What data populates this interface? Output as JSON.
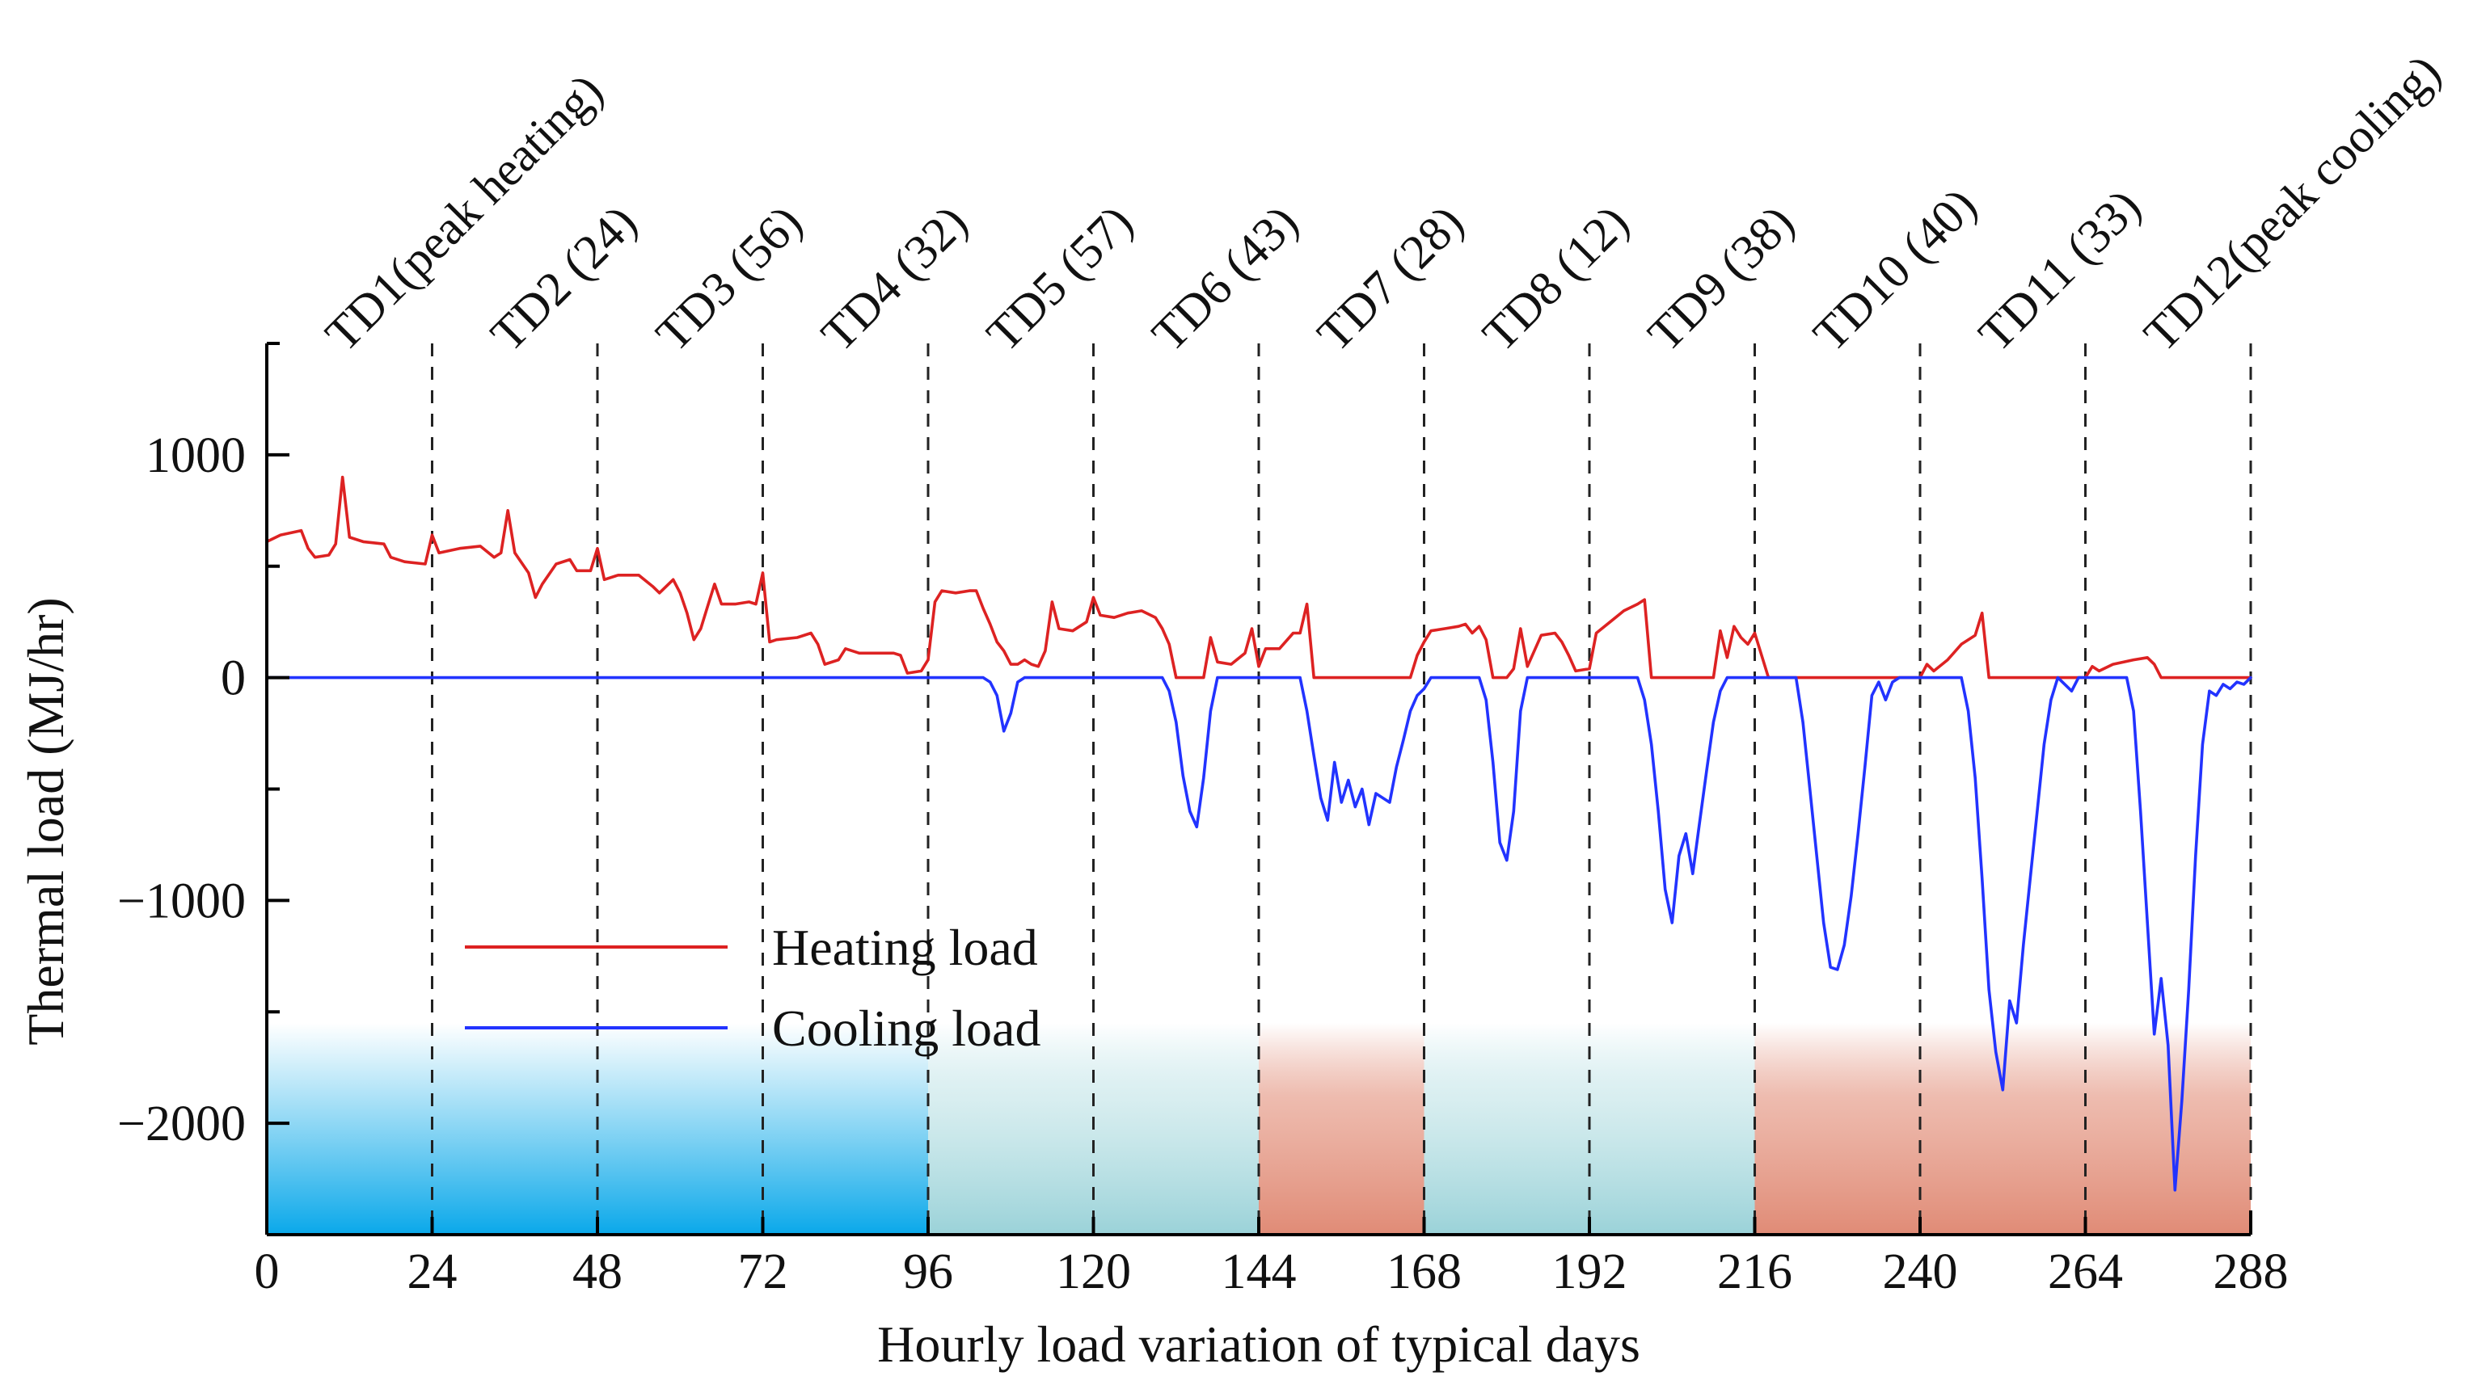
{
  "chart_data": {
    "type": "line",
    "title": "",
    "xlabel": "Hourly load variation of typical days",
    "ylabel": "Thermal load (MJ/hr)",
    "xlim": [
      0,
      288
    ],
    "ylim": [
      -2500,
      1500
    ],
    "xticks": [
      0,
      24,
      48,
      72,
      96,
      120,
      144,
      168,
      192,
      216,
      240,
      264,
      288
    ],
    "yticks": [
      1000,
      0,
      -1000,
      -2000
    ],
    "ytick_labels": [
      "1000",
      "0",
      "−1000",
      "−2000"
    ],
    "typical_day_labels": [
      "TD1(peak heating)",
      "TD2 (24)",
      "TD3 (56)",
      "TD4 (32)",
      "TD5 (57)",
      "TD6 (43)",
      "TD7 (28)",
      "TD8 (12)",
      "TD9 (38)",
      "TD10 (40)",
      "TD11 (33)",
      "TD12(peak cooling)"
    ],
    "day_boundaries": [
      24,
      48,
      72,
      96,
      120,
      144,
      168,
      192,
      216,
      240,
      264,
      288
    ],
    "season_bands": [
      {
        "season": "heating",
        "x_start": 0,
        "x_end": 96,
        "color": "#1aaee8"
      },
      {
        "season": "transition",
        "x_start": 96,
        "x_end": 144,
        "color": "#9fd6dc"
      },
      {
        "season": "cooling",
        "x_start": 144,
        "x_end": 168,
        "color": "#e08b76"
      },
      {
        "season": "transition",
        "x_start": 168,
        "x_end": 216,
        "color": "#9fd6dc"
      },
      {
        "season": "cooling",
        "x_start": 216,
        "x_end": 288,
        "color": "#e08b76"
      }
    ],
    "legend_position": "lower-left",
    "series": [
      {
        "name": "Heating load",
        "color": "#dd2222",
        "points": [
          [
            0,
            610
          ],
          [
            2,
            640
          ],
          [
            5,
            660
          ],
          [
            6,
            580
          ],
          [
            7,
            540
          ],
          [
            9,
            550
          ],
          [
            10,
            600
          ],
          [
            11,
            900
          ],
          [
            12,
            630
          ],
          [
            14,
            610
          ],
          [
            17,
            600
          ],
          [
            18,
            540
          ],
          [
            20,
            520
          ],
          [
            23,
            510
          ],
          [
            24,
            640
          ],
          [
            25,
            560
          ],
          [
            28,
            580
          ],
          [
            31,
            590
          ],
          [
            33,
            540
          ],
          [
            34,
            560
          ],
          [
            35,
            750
          ],
          [
            36,
            560
          ],
          [
            38,
            470
          ],
          [
            39,
            360
          ],
          [
            40,
            420
          ],
          [
            42,
            510
          ],
          [
            44,
            530
          ],
          [
            45,
            480
          ],
          [
            47,
            480
          ],
          [
            48,
            580
          ],
          [
            49,
            440
          ],
          [
            51,
            460
          ],
          [
            54,
            460
          ],
          [
            56,
            410
          ],
          [
            57,
            380
          ],
          [
            59,
            440
          ],
          [
            60,
            380
          ],
          [
            61,
            290
          ],
          [
            62,
            170
          ],
          [
            63,
            220
          ],
          [
            64,
            320
          ],
          [
            65,
            420
          ],
          [
            66,
            330
          ],
          [
            68,
            330
          ],
          [
            70,
            340
          ],
          [
            71,
            330
          ],
          [
            72,
            470
          ],
          [
            73,
            160
          ],
          [
            74,
            170
          ],
          [
            77,
            180
          ],
          [
            79,
            200
          ],
          [
            80,
            150
          ],
          [
            81,
            60
          ],
          [
            83,
            80
          ],
          [
            84,
            130
          ],
          [
            86,
            110
          ],
          [
            88,
            110
          ],
          [
            91,
            110
          ],
          [
            92,
            100
          ],
          [
            93,
            20
          ],
          [
            95,
            30
          ],
          [
            96,
            80
          ],
          [
            97,
            340
          ],
          [
            98,
            390
          ],
          [
            100,
            380
          ],
          [
            102,
            390
          ],
          [
            103,
            390
          ],
          [
            104,
            310
          ],
          [
            105,
            240
          ],
          [
            106,
            160
          ],
          [
            107,
            120
          ],
          [
            108,
            60
          ],
          [
            109,
            60
          ],
          [
            110,
            80
          ],
          [
            111,
            60
          ],
          [
            112,
            50
          ],
          [
            113,
            120
          ],
          [
            114,
            340
          ],
          [
            115,
            220
          ],
          [
            117,
            210
          ],
          [
            119,
            250
          ],
          [
            120,
            360
          ],
          [
            121,
            280
          ],
          [
            123,
            270
          ],
          [
            125,
            290
          ],
          [
            127,
            300
          ],
          [
            129,
            270
          ],
          [
            130,
            220
          ],
          [
            131,
            150
          ],
          [
            132,
            0
          ],
          [
            134,
            0
          ],
          [
            136,
            0
          ],
          [
            137,
            180
          ],
          [
            138,
            70
          ],
          [
            140,
            60
          ],
          [
            142,
            110
          ],
          [
            143,
            220
          ],
          [
            144,
            50
          ],
          [
            145,
            130
          ],
          [
            147,
            130
          ],
          [
            149,
            200
          ],
          [
            150,
            200
          ],
          [
            151,
            330
          ],
          [
            152,
            0
          ],
          [
            154,
            0
          ],
          [
            166,
            0
          ],
          [
            167,
            100
          ],
          [
            168,
            160
          ],
          [
            169,
            210
          ],
          [
            171,
            220
          ],
          [
            173,
            230
          ],
          [
            174,
            240
          ],
          [
            175,
            200
          ],
          [
            176,
            230
          ],
          [
            177,
            170
          ],
          [
            178,
            0
          ],
          [
            180,
            0
          ],
          [
            181,
            40
          ],
          [
            182,
            220
          ],
          [
            183,
            50
          ],
          [
            185,
            190
          ],
          [
            187,
            200
          ],
          [
            188,
            160
          ],
          [
            189,
            100
          ],
          [
            190,
            30
          ],
          [
            192,
            40
          ],
          [
            193,
            200
          ],
          [
            195,
            250
          ],
          [
            197,
            300
          ],
          [
            199,
            330
          ],
          [
            200,
            350
          ],
          [
            201,
            0
          ],
          [
            204,
            0
          ],
          [
            210,
            0
          ],
          [
            211,
            210
          ],
          [
            212,
            90
          ],
          [
            213,
            230
          ],
          [
            214,
            180
          ],
          [
            215,
            150
          ],
          [
            216,
            200
          ],
          [
            218,
            0
          ],
          [
            240,
            0
          ],
          [
            241,
            60
          ],
          [
            242,
            30
          ],
          [
            244,
            80
          ],
          [
            246,
            150
          ],
          [
            248,
            190
          ],
          [
            249,
            290
          ],
          [
            250,
            0
          ],
          [
            264,
            0
          ],
          [
            265,
            50
          ],
          [
            266,
            30
          ],
          [
            268,
            60
          ],
          [
            271,
            80
          ],
          [
            273,
            90
          ],
          [
            274,
            60
          ],
          [
            275,
            0
          ],
          [
            288,
            0
          ]
        ]
      },
      {
        "name": "Cooling load",
        "color": "#2233ff",
        "points": [
          [
            0,
            0
          ],
          [
            104,
            0
          ],
          [
            105,
            -20
          ],
          [
            106,
            -80
          ],
          [
            107,
            -240
          ],
          [
            108,
            -160
          ],
          [
            109,
            -20
          ],
          [
            110,
            0
          ],
          [
            130,
            0
          ],
          [
            131,
            -60
          ],
          [
            132,
            -200
          ],
          [
            133,
            -440
          ],
          [
            134,
            -600
          ],
          [
            135,
            -670
          ],
          [
            136,
            -450
          ],
          [
            137,
            -150
          ],
          [
            138,
            0
          ],
          [
            150,
            0
          ],
          [
            151,
            -150
          ],
          [
            152,
            -350
          ],
          [
            153,
            -540
          ],
          [
            154,
            -640
          ],
          [
            155,
            -380
          ],
          [
            156,
            -560
          ],
          [
            157,
            -460
          ],
          [
            158,
            -580
          ],
          [
            159,
            -500
          ],
          [
            160,
            -660
          ],
          [
            161,
            -520
          ],
          [
            163,
            -560
          ],
          [
            164,
            -400
          ],
          [
            165,
            -280
          ],
          [
            166,
            -150
          ],
          [
            167,
            -80
          ],
          [
            168,
            -50
          ],
          [
            169,
            0
          ],
          [
            176,
            0
          ],
          [
            177,
            -100
          ],
          [
            178,
            -380
          ],
          [
            179,
            -740
          ],
          [
            180,
            -820
          ],
          [
            181,
            -600
          ],
          [
            182,
            -150
          ],
          [
            183,
            0
          ],
          [
            199,
            0
          ],
          [
            200,
            -100
          ],
          [
            201,
            -300
          ],
          [
            202,
            -600
          ],
          [
            203,
            -950
          ],
          [
            204,
            -1100
          ],
          [
            205,
            -800
          ],
          [
            206,
            -700
          ],
          [
            207,
            -880
          ],
          [
            208,
            -650
          ],
          [
            209,
            -420
          ],
          [
            210,
            -200
          ],
          [
            211,
            -60
          ],
          [
            212,
            0
          ],
          [
            222,
            0
          ],
          [
            223,
            -200
          ],
          [
            224,
            -500
          ],
          [
            225,
            -800
          ],
          [
            226,
            -1100
          ],
          [
            227,
            -1300
          ],
          [
            228,
            -1310
          ],
          [
            229,
            -1200
          ],
          [
            230,
            -980
          ],
          [
            231,
            -700
          ],
          [
            232,
            -400
          ],
          [
            233,
            -80
          ],
          [
            234,
            -20
          ],
          [
            235,
            -100
          ],
          [
            236,
            -20
          ],
          [
            237,
            0
          ],
          [
            246,
            0
          ],
          [
            247,
            -150
          ],
          [
            248,
            -450
          ],
          [
            249,
            -900
          ],
          [
            250,
            -1400
          ],
          [
            251,
            -1680
          ],
          [
            252,
            -1850
          ],
          [
            253,
            -1450
          ],
          [
            254,
            -1550
          ],
          [
            255,
            -1200
          ],
          [
            256,
            -900
          ],
          [
            257,
            -600
          ],
          [
            258,
            -300
          ],
          [
            259,
            -100
          ],
          [
            260,
            0
          ],
          [
            262,
            -60
          ],
          [
            263,
            0
          ],
          [
            270,
            0
          ],
          [
            271,
            -150
          ],
          [
            272,
            -600
          ],
          [
            273,
            -1100
          ],
          [
            274,
            -1600
          ],
          [
            275,
            -1350
          ],
          [
            276,
            -1650
          ],
          [
            277,
            -2300
          ],
          [
            278,
            -1900
          ],
          [
            279,
            -1400
          ],
          [
            280,
            -800
          ],
          [
            281,
            -300
          ],
          [
            282,
            -60
          ],
          [
            283,
            -80
          ],
          [
            284,
            -30
          ],
          [
            285,
            -50
          ],
          [
            286,
            -20
          ],
          [
            287,
            -30
          ],
          [
            288,
            0
          ]
        ]
      }
    ]
  }
}
